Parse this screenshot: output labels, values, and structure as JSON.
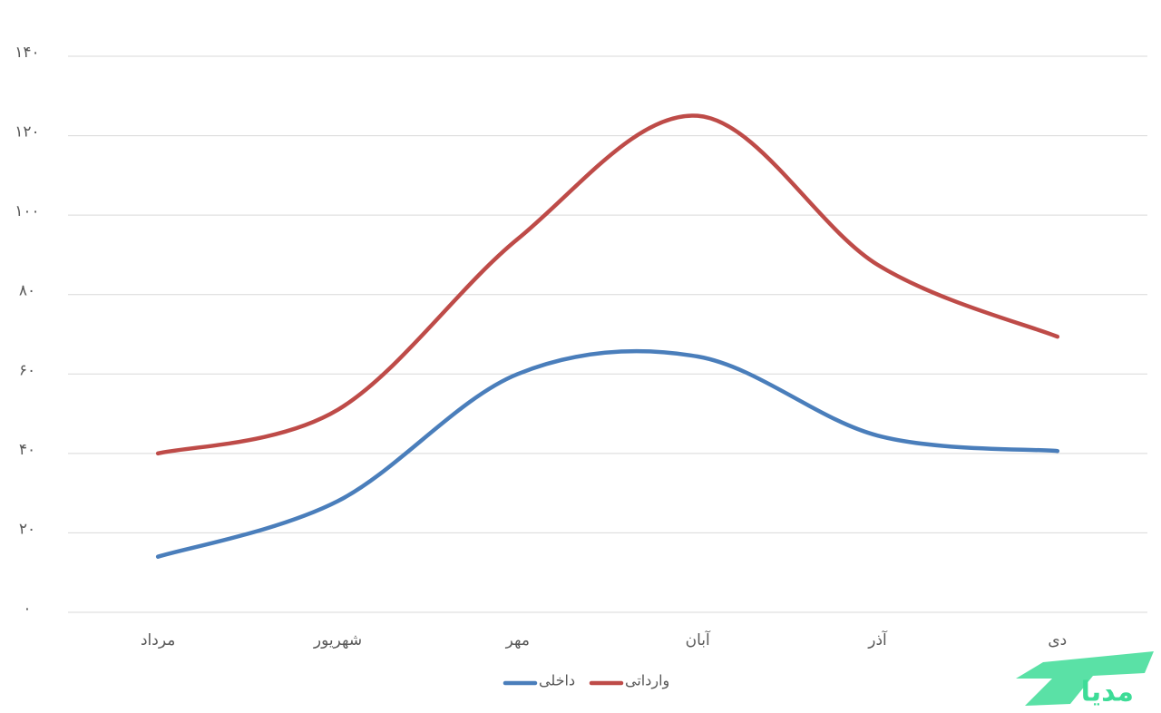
{
  "chart_data": {
    "type": "line",
    "categories": [
      "مرداد",
      "شهریور",
      "مهر",
      "آبان",
      "آذر",
      "دی"
    ],
    "series": [
      {
        "name": "داخلی",
        "color": "#4a7ebb",
        "values": [
          14,
          28,
          60,
          64.4,
          44.5,
          40.6
        ]
      },
      {
        "name": "وارداتی",
        "color": "#be4b48",
        "values": [
          40,
          51,
          94,
          125,
          87.5,
          69.4
        ]
      }
    ],
    "ylim": [
      0,
      140
    ],
    "yticks": [
      {
        "value": 0,
        "label": "۰"
      },
      {
        "value": 20,
        "label": "۲۰"
      },
      {
        "value": 40,
        "label": "۴۰"
      },
      {
        "value": 60,
        "label": "۶۰"
      },
      {
        "value": 80,
        "label": "۸۰"
      },
      {
        "value": 100,
        "label": "۱۰۰"
      },
      {
        "value": 120,
        "label": "۱۲۰"
      },
      {
        "value": 140,
        "label": "۱۴۰"
      }
    ],
    "grid": true,
    "smooth": true,
    "legend": "bottom",
    "watermark": "مدیا"
  }
}
